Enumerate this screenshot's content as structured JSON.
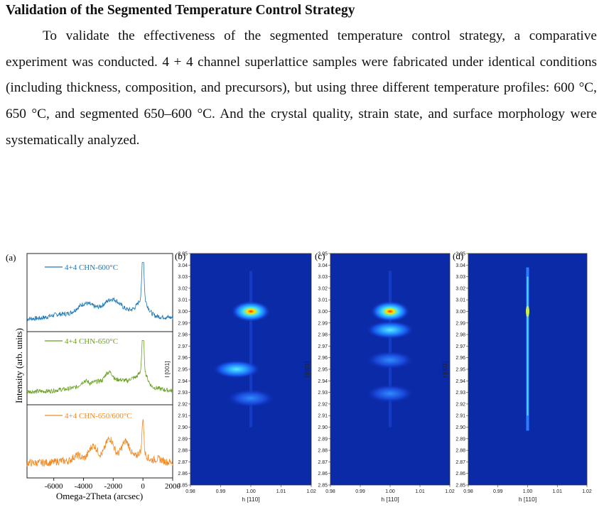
{
  "heading": "Validation of the Segmented Temperature Control Strategy",
  "paragraph": "To validate the effectiveness of the segmented temperature control strategy, a comparative experiment was conducted. 4 + 4 channel superlattice samples were fabricated under identical conditions (including thickness, composition, and precursors), but using three different temperature profiles: 600 °C, 650 °C, and segmented 650–600 °C. And the crystal quality, strain state, and surface morphology were systematically analyzed.",
  "figure": {
    "panel_a": {
      "label": "(a)",
      "xlabel": "Omega-2Theta (arcsec)",
      "ylabel": "Intensity (arb. units)",
      "xticks": [
        "-6000",
        "-4000",
        "-2000",
        "0",
        "2000"
      ],
      "traces": [
        {
          "name": "4+4 CHN-600°C",
          "color": "#1f77b4"
        },
        {
          "name": "4+4 CHN-650°C",
          "color": "#6aa221"
        },
        {
          "name": "4+4 CHN-650/600°C",
          "color": "#f08a24"
        }
      ]
    },
    "maps": {
      "xlabel": "h [110]",
      "ylabel": "l [001]",
      "xticks": [
        "0.98",
        "0.99",
        "1.00",
        "1.01",
        "1.02"
      ],
      "yticks": [
        "3.05",
        "3.04",
        "3.03",
        "3.02",
        "3.01",
        "3.00",
        "2.99",
        "2.98",
        "2.97",
        "2.96",
        "2.95",
        "2.94",
        "2.93",
        "2.92",
        "2.91",
        "2.90",
        "2.89",
        "2.88",
        "2.87",
        "2.86",
        "2.85"
      ],
      "panels": [
        {
          "label": "(b)",
          "peaks_l": [
            3.0,
            2.95,
            2.925
          ],
          "type": "blobs"
        },
        {
          "label": "(c)",
          "peaks_l": [
            3.0,
            2.984,
            2.958,
            2.929
          ],
          "type": "blobs"
        },
        {
          "label": "(d)",
          "type": "streak"
        }
      ]
    }
  },
  "chart_data": [
    {
      "type": "line",
      "title": "",
      "xlabel": "Omega-2Theta (arcsec)",
      "ylabel": "Intensity (arb. units)",
      "xlim": [
        -7800,
        2000
      ],
      "series": [
        {
          "name": "4+4 CHN-600°C",
          "x": [
            -7800,
            -6000,
            -5000,
            -4000,
            -3000,
            -2000,
            -1000,
            -300,
            0,
            300,
            1000,
            2000
          ]
        },
        {
          "name": "4+4 CHN-650°C",
          "x": [
            -7800,
            -6000,
            -5000,
            -4000,
            -3000,
            -2000,
            -1000,
            -300,
            0,
            300,
            1000,
            2000
          ]
        },
        {
          "name": "4+4 CHN-650/600°C",
          "x": [
            -7800,
            -6000,
            -5000,
            -4000,
            -3000,
            -2000,
            -1000,
            -300,
            0,
            300,
            1000,
            2000
          ]
        }
      ]
    }
  ]
}
